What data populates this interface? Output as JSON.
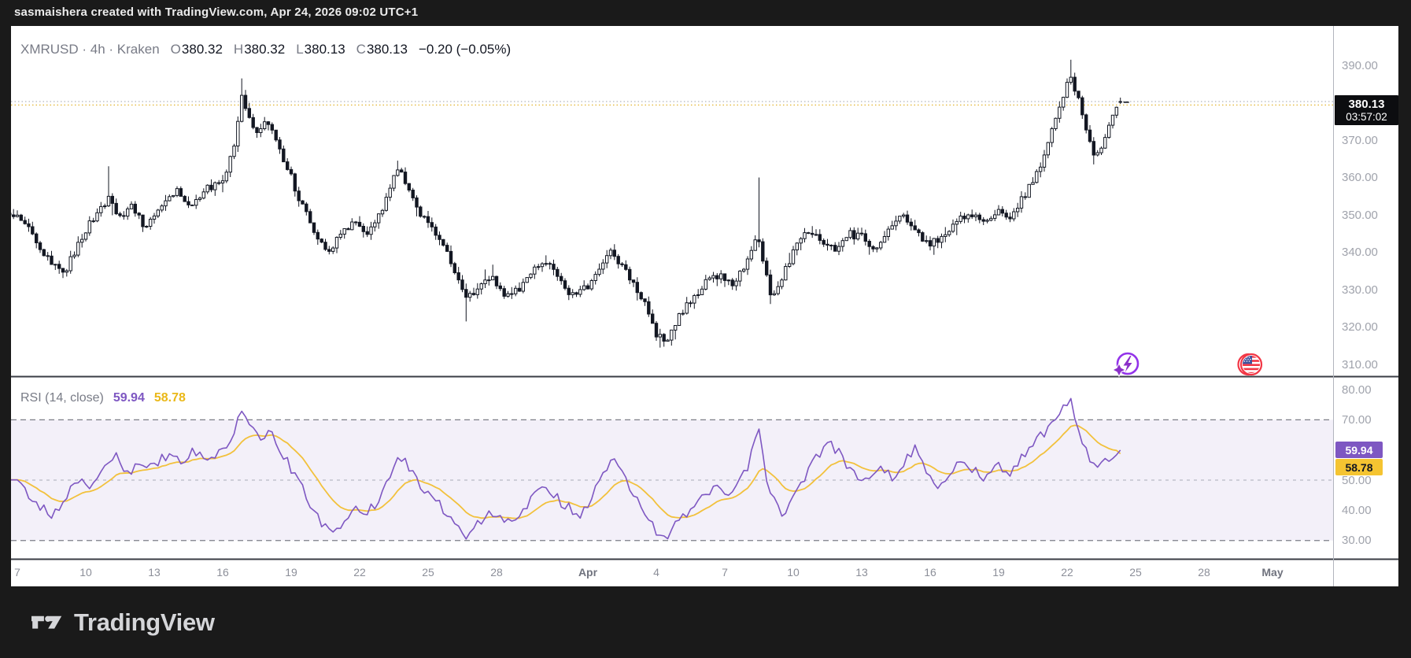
{
  "watermark": {
    "text": "sasmaishera created with TradingView.com, Apr 24, 2026 09:02 UTC+1"
  },
  "header": {
    "title": "XMRUSD · 4h · Kraken",
    "o_label": "O",
    "o": "380.32",
    "h_label": "H",
    "h": "380.32",
    "l_label": "L",
    "l": "380.13",
    "c_label": "C",
    "c": "380.13",
    "change": "−0.20 (−0.05%)"
  },
  "price_scale": {
    "ticks": [
      {
        "label": "390.00",
        "value": 390
      },
      {
        "label": "370.00",
        "value": 370
      },
      {
        "label": "360.00",
        "value": 360
      },
      {
        "label": "350.00",
        "value": 350
      },
      {
        "label": "340.00",
        "value": 340
      },
      {
        "label": "330.00",
        "value": 330
      },
      {
        "label": "320.00",
        "value": 320
      },
      {
        "label": "310.00",
        "value": 310
      }
    ],
    "last_price": "380.13",
    "countdown": "03:57:02"
  },
  "rsi_pane": {
    "title": "RSI (14, close)",
    "main_value": "59.94",
    "signal_value": "58.78",
    "ticks": [
      {
        "label": "80.00",
        "value": 80
      },
      {
        "label": "70.00",
        "value": 70
      },
      {
        "label": "50.00",
        "value": 50
      },
      {
        "label": "40.00",
        "value": 40
      },
      {
        "label": "30.00",
        "value": 30
      }
    ]
  },
  "time_scale": {
    "labels": [
      {
        "text": "7",
        "day": 0,
        "bold": false
      },
      {
        "text": "10",
        "day": 3,
        "bold": false
      },
      {
        "text": "13",
        "day": 6,
        "bold": false
      },
      {
        "text": "16",
        "day": 9,
        "bold": false
      },
      {
        "text": "19",
        "day": 12,
        "bold": false
      },
      {
        "text": "22",
        "day": 15,
        "bold": false
      },
      {
        "text": "25",
        "day": 18,
        "bold": false
      },
      {
        "text": "28",
        "day": 21,
        "bold": false
      },
      {
        "text": "Apr",
        "day": 25,
        "bold": true
      },
      {
        "text": "4",
        "day": 28,
        "bold": false
      },
      {
        "text": "7",
        "day": 31,
        "bold": false
      },
      {
        "text": "10",
        "day": 34,
        "bold": false
      },
      {
        "text": "13",
        "day": 37,
        "bold": false
      },
      {
        "text": "16",
        "day": 40,
        "bold": false
      },
      {
        "text": "19",
        "day": 43,
        "bold": false
      },
      {
        "text": "22",
        "day": 46,
        "bold": false
      },
      {
        "text": "25",
        "day": 49,
        "bold": false
      },
      {
        "text": "28",
        "day": 52,
        "bold": false
      },
      {
        "text": "May",
        "day": 55,
        "bold": true
      }
    ]
  },
  "footer": {
    "brand": "TradingView"
  },
  "colors": {
    "up_fill": "#ffffff",
    "down_fill": "#131722",
    "candle_border": "#131722",
    "rsi_main": "#7e57c2",
    "rsi_signal": "#f2c13c",
    "band_fill": "rgba(126,87,194,0.09)",
    "dash_strong": "#7b7e87",
    "dash_mid": "#aaadb6",
    "price_line_gray": "#b2b5be",
    "price_line_yellow": "#e3b93c",
    "separator_dark": "#3a3d44",
    "axis_line": "#b2b5be",
    "spark_purple": "#9333ea",
    "flag_red": "#f23645",
    "flag_blue": "#3e539e"
  },
  "chart_data": {
    "type": "candlestick",
    "symbol": "XMRUSD",
    "interval": "4h",
    "exchange": "Kraken",
    "title": "XMRUSD · 4h · Kraken with RSI (14, close)",
    "ohlc": {
      "open": 380.32,
      "high": 380.32,
      "low": 380.13,
      "close": 380.13,
      "change": -0.2,
      "change_pct": -0.05
    },
    "price_axis_range": [
      306,
      400
    ],
    "time_range": {
      "start": "Mar 7",
      "end": "Apr 24 09:02",
      "future_shown_until": "May"
    },
    "bars_per_day": 6,
    "last_bar_day": 48.37,
    "price_path": [
      [
        0,
        350
      ],
      [
        0.5,
        346
      ],
      [
        1.2,
        339
      ],
      [
        2,
        334
      ],
      [
        2.6,
        341
      ],
      [
        3.2,
        348
      ],
      [
        4,
        354
      ],
      [
        4.5,
        349
      ],
      [
        5,
        352
      ],
      [
        5.6,
        347
      ],
      [
        6.2,
        351
      ],
      [
        7,
        357
      ],
      [
        7.6,
        352
      ],
      [
        8.3,
        357
      ],
      [
        9,
        359
      ],
      [
        9.5,
        368
      ],
      [
        9.85,
        383
      ],
      [
        10.1,
        377
      ],
      [
        10.5,
        372
      ],
      [
        10.9,
        376
      ],
      [
        11.4,
        369
      ],
      [
        12,
        360
      ],
      [
        12.5,
        352
      ],
      [
        13,
        346
      ],
      [
        13.6,
        340
      ],
      [
        14.2,
        345
      ],
      [
        14.8,
        348
      ],
      [
        15.3,
        345
      ],
      [
        16,
        351
      ],
      [
        16.5,
        360
      ],
      [
        16.8,
        362
      ],
      [
        17.3,
        354
      ],
      [
        18,
        347
      ],
      [
        18.6,
        343
      ],
      [
        19.2,
        334
      ],
      [
        19.7,
        327
      ],
      [
        20.2,
        331
      ],
      [
        20.8,
        333
      ],
      [
        21.3,
        328
      ],
      [
        22,
        330
      ],
      [
        22.6,
        335
      ],
      [
        23.2,
        337
      ],
      [
        23.8,
        332
      ],
      [
        24.4,
        328
      ],
      [
        25,
        331
      ],
      [
        25.6,
        337
      ],
      [
        26,
        340
      ],
      [
        26.5,
        336
      ],
      [
        27,
        332
      ],
      [
        27.5,
        326
      ],
      [
        28,
        318
      ],
      [
        28.4,
        316
      ],
      [
        28.9,
        322
      ],
      [
        29.5,
        327
      ],
      [
        30.2,
        332
      ],
      [
        30.8,
        334
      ],
      [
        31.3,
        331
      ],
      [
        32,
        338
      ],
      [
        32.4,
        345
      ],
      [
        32.7,
        336
      ],
      [
        33.1,
        327
      ],
      [
        33.5,
        333
      ],
      [
        34,
        340
      ],
      [
        34.6,
        346
      ],
      [
        35.2,
        343
      ],
      [
        35.8,
        341
      ],
      [
        36.4,
        345
      ],
      [
        37,
        344
      ],
      [
        37.6,
        341
      ],
      [
        38.2,
        346
      ],
      [
        38.8,
        350
      ],
      [
        39.3,
        347
      ],
      [
        39.9,
        342
      ],
      [
        40.5,
        344
      ],
      [
        41.1,
        348
      ],
      [
        41.7,
        350
      ],
      [
        42.3,
        348
      ],
      [
        42.9,
        351
      ],
      [
        43.4,
        349
      ],
      [
        44,
        354
      ],
      [
        44.5,
        359
      ],
      [
        45,
        366
      ],
      [
        45.4,
        374
      ],
      [
        45.8,
        381
      ],
      [
        46.1,
        387
      ],
      [
        46.4,
        383
      ],
      [
        46.7,
        377
      ],
      [
        47.1,
        367
      ],
      [
        47.4,
        366
      ],
      [
        47.7,
        372
      ],
      [
        48,
        376
      ],
      [
        48.37,
        380.13
      ]
    ],
    "wick_events": [
      {
        "d": 4.07,
        "high": 363
      },
      {
        "d": 9.85,
        "high": 386.5
      },
      {
        "d": 16.6,
        "high": 364.5
      },
      {
        "d": 19.7,
        "low": 321.5
      },
      {
        "d": 28.2,
        "low": 314.5
      },
      {
        "d": 32.5,
        "high": 360
      },
      {
        "d": 46.1,
        "high": 391.5
      },
      {
        "d": 47.15,
        "low": 363.5
      }
    ],
    "price_lines": [
      {
        "value": 380.32,
        "style": "dotted",
        "color": "gray"
      },
      {
        "value": 380.13,
        "style": "dotted",
        "color": "yellow"
      }
    ],
    "rsi": {
      "period": 14,
      "source": "close",
      "last": 59.94,
      "signal_last": 58.78,
      "levels": [
        70,
        50,
        30
      ],
      "band": [
        30,
        70
      ],
      "axis_range": [
        24,
        84
      ],
      "path": [
        [
          0,
          50
        ],
        [
          0.7,
          44
        ],
        [
          1.4,
          38
        ],
        [
          2,
          43
        ],
        [
          2.6,
          50
        ],
        [
          3.2,
          47
        ],
        [
          3.8,
          55
        ],
        [
          4.3,
          58
        ],
        [
          4.8,
          52
        ],
        [
          5.4,
          57
        ],
        [
          6,
          54
        ],
        [
          6.6,
          59
        ],
        [
          7.2,
          56
        ],
        [
          7.8,
          60
        ],
        [
          8.4,
          57
        ],
        [
          9,
          60
        ],
        [
          9.5,
          66
        ],
        [
          9.85,
          73
        ],
        [
          10.2,
          67
        ],
        [
          10.6,
          63
        ],
        [
          11,
          66
        ],
        [
          11.5,
          61
        ],
        [
          12,
          54
        ],
        [
          12.5,
          47
        ],
        [
          13,
          40
        ],
        [
          13.4,
          35
        ],
        [
          13.8,
          31
        ],
        [
          14.3,
          36
        ],
        [
          14.8,
          41
        ],
        [
          15.3,
          38
        ],
        [
          16,
          46
        ],
        [
          16.5,
          54
        ],
        [
          16.9,
          58
        ],
        [
          17.4,
          51
        ],
        [
          17.9,
          46
        ],
        [
          18.5,
          42
        ],
        [
          19.1,
          37
        ],
        [
          19.7,
          31
        ],
        [
          20.2,
          36
        ],
        [
          20.7,
          40
        ],
        [
          21.2,
          37
        ],
        [
          21.8,
          35
        ],
        [
          22.4,
          42
        ],
        [
          23,
          49
        ],
        [
          23.5,
          45
        ],
        [
          24.1,
          41
        ],
        [
          24.7,
          39
        ],
        [
          25.2,
          45
        ],
        [
          25.7,
          52
        ],
        [
          26.1,
          57
        ],
        [
          26.5,
          52
        ],
        [
          27,
          46
        ],
        [
          27.5,
          40
        ],
        [
          28,
          33
        ],
        [
          28.4,
          30
        ],
        [
          28.8,
          35
        ],
        [
          29.3,
          39
        ],
        [
          29.9,
          44
        ],
        [
          30.5,
          48
        ],
        [
          31,
          45
        ],
        [
          31.6,
          50
        ],
        [
          32.1,
          56
        ],
        [
          32.45,
          70
        ],
        [
          32.8,
          52
        ],
        [
          33.2,
          42
        ],
        [
          33.6,
          39
        ],
        [
          34.1,
          46
        ],
        [
          34.6,
          52
        ],
        [
          35.1,
          58
        ],
        [
          35.5,
          64
        ],
        [
          35.9,
          60
        ],
        [
          36.3,
          56
        ],
        [
          36.8,
          52
        ],
        [
          37.3,
          50
        ],
        [
          37.9,
          54
        ],
        [
          38.4,
          51
        ],
        [
          38.9,
          56
        ],
        [
          39.3,
          61
        ],
        [
          39.8,
          54
        ],
        [
          40.3,
          48
        ],
        [
          40.9,
          53
        ],
        [
          41.4,
          57
        ],
        [
          41.9,
          53
        ],
        [
          42.4,
          50
        ],
        [
          42.9,
          55
        ],
        [
          43.4,
          52
        ],
        [
          43.9,
          57
        ],
        [
          44.4,
          61
        ],
        [
          44.9,
          65
        ],
        [
          45.4,
          70
        ],
        [
          45.9,
          74
        ],
        [
          46.15,
          76
        ],
        [
          46.4,
          70
        ],
        [
          46.7,
          61
        ],
        [
          47.1,
          55
        ],
        [
          47.4,
          53
        ],
        [
          47.7,
          58
        ],
        [
          48.05,
          55
        ],
        [
          48.37,
          59.94
        ]
      ]
    }
  }
}
